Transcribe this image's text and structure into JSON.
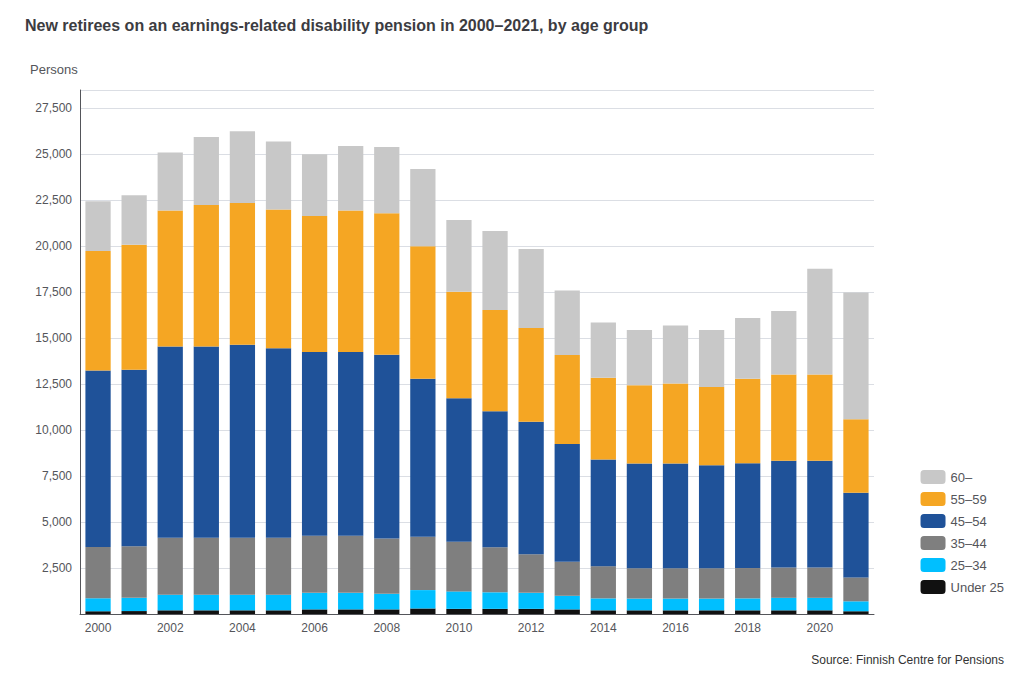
{
  "chart_data": {
    "type": "bar",
    "stacked": true,
    "title": "New retirees on an earnings-related disability pension in 2000–2021, by age group",
    "ylabel": "Persons",
    "annotations": [
      "Source: Finnish Centre for Pensions"
    ],
    "categories": [
      "2000",
      null,
      "2002",
      null,
      "2004",
      null,
      "2006",
      null,
      "2008",
      null,
      "2010",
      null,
      "2012",
      null,
      "2014",
      null,
      "2016",
      null,
      "2018",
      null,
      "2020",
      null
    ],
    "series": [
      {
        "name": "Under 25",
        "color": "#111111",
        "values": [
          150,
          160,
          200,
          200,
          200,
          200,
          250,
          250,
          250,
          300,
          280,
          280,
          280,
          250,
          200,
          200,
          200,
          200,
          200,
          200,
          200,
          150
        ]
      },
      {
        "name": "25–34",
        "color": "#00bfff",
        "values": [
          700,
          720,
          850,
          850,
          850,
          850,
          900,
          900,
          850,
          1000,
          950,
          900,
          870,
          740,
          650,
          640,
          640,
          640,
          650,
          680,
          680,
          540
        ]
      },
      {
        "name": "35–44",
        "color": "#7f7f7f",
        "values": [
          2800,
          2800,
          3100,
          3100,
          3100,
          3100,
          3100,
          3100,
          3000,
          2900,
          2700,
          2450,
          2100,
          1850,
          1750,
          1650,
          1650,
          1650,
          1650,
          1650,
          1650,
          1300
        ]
      },
      {
        "name": "45–54",
        "color": "#1f5299",
        "values": [
          9600,
          9600,
          10400,
          10400,
          10500,
          10300,
          10000,
          10000,
          10000,
          8600,
          7800,
          7400,
          7200,
          6400,
          5800,
          5700,
          5700,
          5600,
          5700,
          5800,
          5800,
          4600
        ]
      },
      {
        "name": "55–59",
        "color": "#f5a623",
        "values": [
          6500,
          6800,
          7400,
          7700,
          7700,
          7550,
          7400,
          7700,
          7700,
          7200,
          5800,
          5500,
          5100,
          4850,
          4450,
          4250,
          4350,
          4250,
          4600,
          4700,
          4700,
          4000
        ]
      },
      {
        "name": "60–",
        "color": "#c8c8c8",
        "values": [
          2700,
          2700,
          3150,
          3700,
          3900,
          3700,
          3350,
          3500,
          3600,
          4200,
          3900,
          4300,
          4300,
          3500,
          3000,
          3000,
          3150,
          3100,
          3300,
          3450,
          5750,
          6900
        ]
      }
    ],
    "ylim": [
      0,
      28500
    ],
    "yticks": [
      {
        "value": 0,
        "label": ""
      },
      {
        "value": 2500,
        "label": "2,500"
      },
      {
        "value": 5000,
        "label": "5,000"
      },
      {
        "value": 7500,
        "label": "7,500"
      },
      {
        "value": 10000,
        "label": "10,000"
      },
      {
        "value": 12500,
        "label": "12,500"
      },
      {
        "value": 15000,
        "label": "15,000"
      },
      {
        "value": 17500,
        "label": "17,500"
      },
      {
        "value": 20000,
        "label": "20,000"
      },
      {
        "value": 22500,
        "label": "22,500"
      },
      {
        "value": 25000,
        "label": "25,000"
      },
      {
        "value": 27500,
        "label": "27,500"
      }
    ],
    "grid": true,
    "legend": "lower right"
  }
}
